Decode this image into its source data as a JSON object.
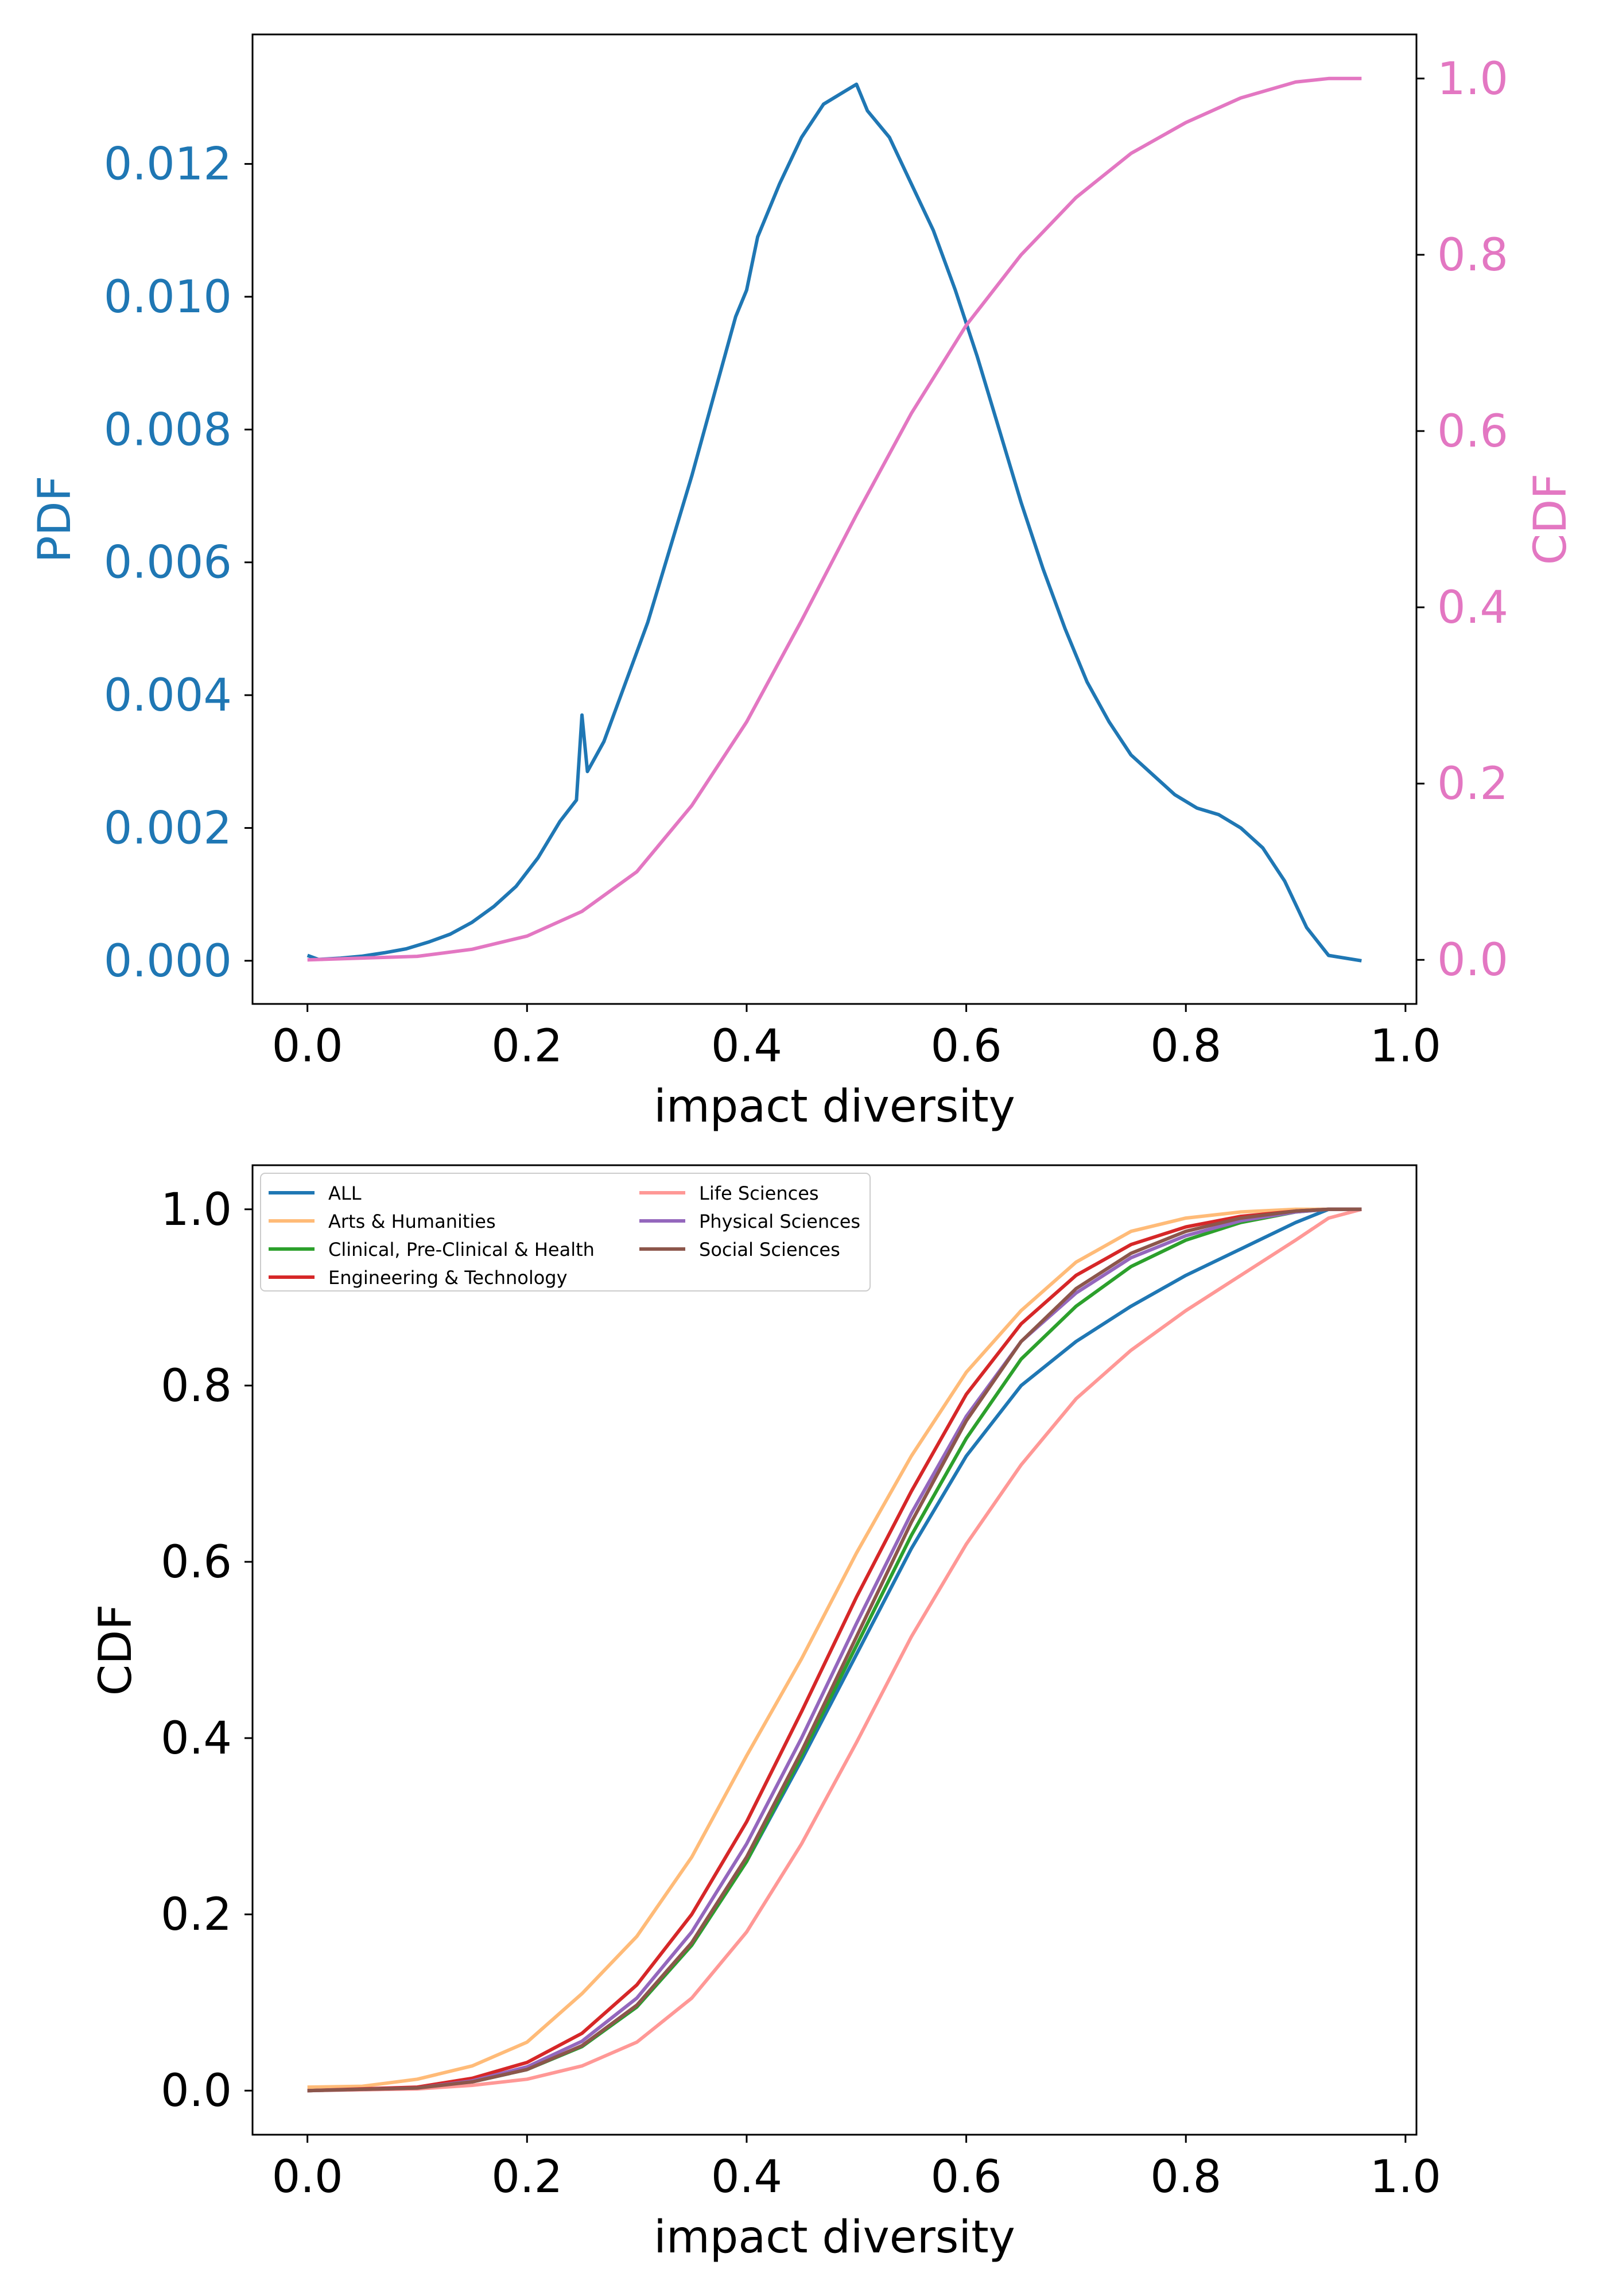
{
  "chart_data": [
    {
      "type": "line",
      "xlabel": "impact diversity",
      "ylabel_left": "PDF",
      "ylabel_right": "CDF",
      "xlim": [
        -0.05,
        1.01
      ],
      "ylim_left": [
        -0.00065,
        0.01395
      ],
      "ylim_right": [
        -0.05,
        1.05
      ],
      "x_ticks": [
        "0.0",
        "0.2",
        "0.4",
        "0.6",
        "0.8",
        "1.0"
      ],
      "y_ticks_left": [
        "0.000",
        "0.002",
        "0.004",
        "0.006",
        "0.008",
        "0.010",
        "0.012"
      ],
      "y_ticks_right": [
        "0.0",
        "0.2",
        "0.4",
        "0.6",
        "0.8",
        "1.0"
      ],
      "colors": {
        "pdf": "#1f77b4",
        "cdf": "#e377c2"
      },
      "series": [
        {
          "axis": "left",
          "color": "#1f77b4",
          "points": [
            [
              0.0,
              8e-05
            ],
            [
              0.01,
              2e-05
            ],
            [
              0.03,
              4e-05
            ],
            [
              0.05,
              7e-05
            ],
            [
              0.07,
              0.00012
            ],
            [
              0.09,
              0.00018
            ],
            [
              0.11,
              0.00028
            ],
            [
              0.13,
              0.0004
            ],
            [
              0.15,
              0.00058
            ],
            [
              0.17,
              0.00082
            ],
            [
              0.19,
              0.00112
            ],
            [
              0.21,
              0.00155
            ],
            [
              0.23,
              0.0021
            ],
            [
              0.245,
              0.00242
            ],
            [
              0.25,
              0.0037
            ],
            [
              0.255,
              0.00285
            ],
            [
              0.27,
              0.0033
            ],
            [
              0.29,
              0.0042
            ],
            [
              0.31,
              0.0051
            ],
            [
              0.33,
              0.0062
            ],
            [
              0.35,
              0.0073
            ],
            [
              0.37,
              0.0085
            ],
            [
              0.39,
              0.0097
            ],
            [
              0.4,
              0.0101
            ],
            [
              0.41,
              0.0109
            ],
            [
              0.43,
              0.0117
            ],
            [
              0.45,
              0.0124
            ],
            [
              0.47,
              0.0129
            ],
            [
              0.49,
              0.0131
            ],
            [
              0.5,
              0.0132
            ],
            [
              0.51,
              0.0128
            ],
            [
              0.53,
              0.0124
            ],
            [
              0.55,
              0.0117
            ],
            [
              0.57,
              0.011
            ],
            [
              0.59,
              0.0101
            ],
            [
              0.61,
              0.0091
            ],
            [
              0.63,
              0.008
            ],
            [
              0.65,
              0.0069
            ],
            [
              0.67,
              0.0059
            ],
            [
              0.69,
              0.005
            ],
            [
              0.71,
              0.0042
            ],
            [
              0.73,
              0.0036
            ],
            [
              0.75,
              0.0031
            ],
            [
              0.77,
              0.0028
            ],
            [
              0.79,
              0.0025
            ],
            [
              0.81,
              0.0023
            ],
            [
              0.83,
              0.0022
            ],
            [
              0.85,
              0.002
            ],
            [
              0.87,
              0.0017
            ],
            [
              0.89,
              0.0012
            ],
            [
              0.91,
              0.0005
            ],
            [
              0.93,
              8e-05
            ],
            [
              0.96,
              0.0
            ]
          ]
        },
        {
          "axis": "right",
          "color": "#e377c2",
          "points": [
            [
              0.0,
              0.0
            ],
            [
              0.1,
              0.004
            ],
            [
              0.15,
              0.012
            ],
            [
              0.2,
              0.027
            ],
            [
              0.25,
              0.055
            ],
            [
              0.3,
              0.1
            ],
            [
              0.35,
              0.175
            ],
            [
              0.4,
              0.27
            ],
            [
              0.45,
              0.385
            ],
            [
              0.5,
              0.505
            ],
            [
              0.55,
              0.62
            ],
            [
              0.6,
              0.72
            ],
            [
              0.65,
              0.8
            ],
            [
              0.7,
              0.865
            ],
            [
              0.75,
              0.915
            ],
            [
              0.8,
              0.95
            ],
            [
              0.85,
              0.978
            ],
            [
              0.9,
              0.996
            ],
            [
              0.93,
              1.0
            ],
            [
              0.96,
              1.0
            ]
          ]
        }
      ]
    },
    {
      "type": "line",
      "xlabel": "impact diversity",
      "ylabel": "CDF",
      "xlim": [
        -0.05,
        1.01
      ],
      "ylim": [
        -0.05,
        1.05
      ],
      "x_ticks": [
        "0.0",
        "0.2",
        "0.4",
        "0.6",
        "0.8",
        "1.0"
      ],
      "y_ticks": [
        "0.0",
        "0.2",
        "0.4",
        "0.6",
        "0.8",
        "1.0"
      ],
      "legend_position": "top-left",
      "series": [
        {
          "name": "ALL",
          "color": "#1f77b4",
          "points": [
            [
              0.0,
              0.0
            ],
            [
              0.1,
              0.003
            ],
            [
              0.15,
              0.01
            ],
            [
              0.2,
              0.024
            ],
            [
              0.25,
              0.05
            ],
            [
              0.3,
              0.095
            ],
            [
              0.35,
              0.165
            ],
            [
              0.4,
              0.26
            ],
            [
              0.45,
              0.375
            ],
            [
              0.5,
              0.495
            ],
            [
              0.55,
              0.615
            ],
            [
              0.6,
              0.72
            ],
            [
              0.65,
              0.8
            ],
            [
              0.7,
              0.85
            ],
            [
              0.75,
              0.89
            ],
            [
              0.8,
              0.925
            ],
            [
              0.85,
              0.955
            ],
            [
              0.9,
              0.985
            ],
            [
              0.93,
              1.0
            ],
            [
              0.96,
              1.0
            ]
          ]
        },
        {
          "name": "Arts & Humanities",
          "color": "#ffbb78",
          "points": [
            [
              0.0,
              0.004
            ],
            [
              0.05,
              0.005
            ],
            [
              0.1,
              0.013
            ],
            [
              0.15,
              0.028
            ],
            [
              0.2,
              0.055
            ],
            [
              0.25,
              0.11
            ],
            [
              0.3,
              0.175
            ],
            [
              0.35,
              0.265
            ],
            [
              0.4,
              0.38
            ],
            [
              0.45,
              0.49
            ],
            [
              0.5,
              0.61
            ],
            [
              0.55,
              0.72
            ],
            [
              0.6,
              0.815
            ],
            [
              0.65,
              0.885
            ],
            [
              0.7,
              0.94
            ],
            [
              0.75,
              0.975
            ],
            [
              0.8,
              0.99
            ],
            [
              0.85,
              0.997
            ],
            [
              0.9,
              1.0
            ],
            [
              0.96,
              1.0
            ]
          ]
        },
        {
          "name": "Clinical, Pre-Clinical & Health",
          "color": "#2ca02c",
          "points": [
            [
              0.0,
              0.0
            ],
            [
              0.1,
              0.003
            ],
            [
              0.15,
              0.01
            ],
            [
              0.2,
              0.024
            ],
            [
              0.25,
              0.05
            ],
            [
              0.3,
              0.095
            ],
            [
              0.35,
              0.165
            ],
            [
              0.4,
              0.26
            ],
            [
              0.45,
              0.38
            ],
            [
              0.5,
              0.505
            ],
            [
              0.55,
              0.63
            ],
            [
              0.6,
              0.74
            ],
            [
              0.65,
              0.83
            ],
            [
              0.7,
              0.89
            ],
            [
              0.75,
              0.935
            ],
            [
              0.8,
              0.965
            ],
            [
              0.85,
              0.985
            ],
            [
              0.9,
              0.997
            ],
            [
              0.93,
              1.0
            ],
            [
              0.96,
              1.0
            ]
          ]
        },
        {
          "name": "Engineering & Technology",
          "color": "#d62728",
          "points": [
            [
              0.0,
              0.0
            ],
            [
              0.1,
              0.004
            ],
            [
              0.15,
              0.014
            ],
            [
              0.2,
              0.032
            ],
            [
              0.25,
              0.065
            ],
            [
              0.3,
              0.12
            ],
            [
              0.35,
              0.2
            ],
            [
              0.4,
              0.305
            ],
            [
              0.45,
              0.43
            ],
            [
              0.5,
              0.56
            ],
            [
              0.55,
              0.68
            ],
            [
              0.6,
              0.79
            ],
            [
              0.65,
              0.87
            ],
            [
              0.7,
              0.925
            ],
            [
              0.75,
              0.96
            ],
            [
              0.8,
              0.98
            ],
            [
              0.85,
              0.992
            ],
            [
              0.9,
              0.998
            ],
            [
              0.93,
              1.0
            ],
            [
              0.96,
              1.0
            ]
          ]
        },
        {
          "name": "Life Sciences",
          "color": "#ff9896",
          "points": [
            [
              0.0,
              0.0
            ],
            [
              0.1,
              0.002
            ],
            [
              0.15,
              0.006
            ],
            [
              0.2,
              0.013
            ],
            [
              0.25,
              0.028
            ],
            [
              0.3,
              0.055
            ],
            [
              0.35,
              0.105
            ],
            [
              0.4,
              0.18
            ],
            [
              0.45,
              0.28
            ],
            [
              0.5,
              0.395
            ],
            [
              0.55,
              0.515
            ],
            [
              0.6,
              0.62
            ],
            [
              0.65,
              0.71
            ],
            [
              0.7,
              0.785
            ],
            [
              0.75,
              0.84
            ],
            [
              0.8,
              0.885
            ],
            [
              0.85,
              0.925
            ],
            [
              0.9,
              0.965
            ],
            [
              0.93,
              0.99
            ],
            [
              0.96,
              1.0
            ]
          ]
        },
        {
          "name": "Physical Sciences",
          "color": "#9467bd",
          "points": [
            [
              0.0,
              0.0
            ],
            [
              0.1,
              0.003
            ],
            [
              0.15,
              0.011
            ],
            [
              0.2,
              0.027
            ],
            [
              0.25,
              0.056
            ],
            [
              0.3,
              0.105
            ],
            [
              0.35,
              0.18
            ],
            [
              0.4,
              0.28
            ],
            [
              0.45,
              0.4
            ],
            [
              0.5,
              0.53
            ],
            [
              0.55,
              0.655
            ],
            [
              0.6,
              0.765
            ],
            [
              0.65,
              0.85
            ],
            [
              0.7,
              0.905
            ],
            [
              0.75,
              0.945
            ],
            [
              0.8,
              0.97
            ],
            [
              0.85,
              0.987
            ],
            [
              0.9,
              0.997
            ],
            [
              0.93,
              1.0
            ],
            [
              0.96,
              1.0
            ]
          ]
        },
        {
          "name": "Social Sciences",
          "color": "#8c564b",
          "points": [
            [
              0.0,
              0.0
            ],
            [
              0.1,
              0.003
            ],
            [
              0.15,
              0.01
            ],
            [
              0.2,
              0.024
            ],
            [
              0.25,
              0.051
            ],
            [
              0.3,
              0.097
            ],
            [
              0.35,
              0.168
            ],
            [
              0.4,
              0.265
            ],
            [
              0.45,
              0.385
            ],
            [
              0.5,
              0.515
            ],
            [
              0.55,
              0.645
            ],
            [
              0.6,
              0.76
            ],
            [
              0.65,
              0.85
            ],
            [
              0.7,
              0.91
            ],
            [
              0.75,
              0.95
            ],
            [
              0.8,
              0.975
            ],
            [
              0.85,
              0.99
            ],
            [
              0.9,
              0.998
            ],
            [
              0.93,
              1.0
            ],
            [
              0.96,
              1.0
            ]
          ]
        }
      ]
    }
  ]
}
